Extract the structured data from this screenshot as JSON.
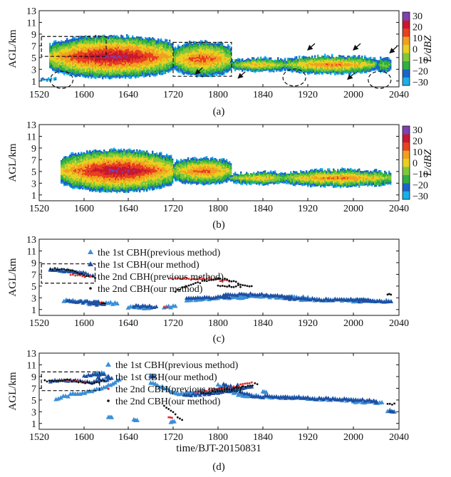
{
  "chart_data": [
    {
      "panel": "(a)",
      "type": "heatmap",
      "ylabel": "AGL/km",
      "colorbar_label": "L/dBZ",
      "x_ticks": [
        "1520",
        "1600",
        "1640",
        "1720",
        "1800",
        "1840",
        "1920",
        "2000",
        "2040"
      ],
      "y_ticks": [
        "1",
        "3",
        "5",
        "7",
        "9",
        "11",
        "13"
      ],
      "colorbar_ticks": [
        "30",
        "20",
        "10",
        "0",
        "−10",
        "−20",
        "−30"
      ],
      "ylim": [
        0,
        13
      ],
      "colorbar_range": [
        -35,
        35
      ],
      "colormap": [
        "#1ab0e8",
        "#1c64c8",
        "#30b040",
        "#7fc83a",
        "#e8d020",
        "#f0a020",
        "#e84020",
        "#c81830",
        "#8040b0"
      ],
      "echo_regions": [
        {
          "x0": 1522,
          "x1": 1534,
          "base": 1.0,
          "top": 1.3,
          "peak": -28
        },
        {
          "x0": 1530,
          "x1": 1720,
          "base": 1.5,
          "top": 8.6,
          "peak": 28
        },
        {
          "x0": 1720,
          "x1": 1812,
          "base": 1.8,
          "top": 7.6,
          "peak": 16
        },
        {
          "x0": 1812,
          "x1": 1900,
          "base": 2.6,
          "top": 4.8,
          "peak": 5
        },
        {
          "x0": 1900,
          "x1": 2020,
          "base": 2.2,
          "top": 5.2,
          "peak": 12
        },
        {
          "x0": 2020,
          "x1": 2033,
          "base": 2.5,
          "top": 4.8,
          "peak": -8
        }
      ],
      "annotations": {
        "boxes": [
          {
            "x0": 1522,
            "x1": 1580,
            "y0": 5.2,
            "y1": 8.6
          },
          {
            "x0": 1720,
            "x1": 1812,
            "y0": 1.8,
            "y1": 7.6
          }
        ],
        "circles": [
          {
            "x": 1540,
            "y": 1.2
          },
          {
            "x": 1868,
            "y": 1.6
          },
          {
            "x": 1983,
            "y": 1.2
          }
        ],
        "arrows": [
          {
            "x": 1880,
            "y": 6.3
          },
          {
            "x": 1960,
            "y": 6.3
          },
          {
            "x": 2032,
            "y": 5.8
          },
          {
            "x": 1740,
            "y": 2.2
          },
          {
            "x": 1778,
            "y": 1.5
          },
          {
            "x": 1955,
            "y": 1.3
          }
        ]
      }
    },
    {
      "panel": "(b)",
      "type": "heatmap",
      "ylabel": "AGL/km",
      "colorbar_label": "L/dBZ",
      "x_ticks": [
        "1520",
        "1600",
        "1640",
        "1720",
        "1800",
        "1840",
        "1920",
        "2000",
        "2040"
      ],
      "y_ticks": [
        "1",
        "3",
        "5",
        "7",
        "9",
        "11",
        "13"
      ],
      "colorbar_ticks": [
        "30",
        "20",
        "10",
        "0",
        "−10",
        "−20",
        "−30"
      ],
      "ylim": [
        0,
        13
      ],
      "echo_regions": [
        {
          "x0": 1540,
          "x1": 1720,
          "base": 1.5,
          "top": 8.6,
          "peak": 28
        },
        {
          "x0": 1720,
          "x1": 1812,
          "base": 2.8,
          "top": 7.2,
          "peak": 14
        },
        {
          "x0": 1812,
          "x1": 1900,
          "base": 2.8,
          "top": 4.8,
          "peak": 5
        },
        {
          "x0": 1900,
          "x1": 2033,
          "base": 2.4,
          "top": 5.2,
          "peak": 12
        }
      ]
    },
    {
      "panel": "(c)",
      "type": "scatter",
      "ylabel": "AGL/km",
      "x_ticks": [
        "1520",
        "1600",
        "1640",
        "1720",
        "1800",
        "1840",
        "1920",
        "2000",
        "2040"
      ],
      "y_ticks": [
        "1",
        "3",
        "5",
        "7",
        "9",
        "11",
        "13"
      ],
      "ylim": [
        0,
        13
      ],
      "legend": [
        "the 1st CBH(previous method)",
        "the 1st CBH(our method)",
        "the 2nd CBH(previous method)",
        "the 2nd CBH(our method)"
      ],
      "box": {
        "x0": 1522,
        "x1": 1570,
        "y0": 5.5,
        "y1": 8.8
      },
      "series": [
        {
          "name": "the 1st CBH(previous method)",
          "color": "#3a8fd8",
          "segments": [
            [
              [
                1530,
                7.8
              ],
              [
                1545,
                7.6
              ],
              [
                1558,
                7.2
              ]
            ],
            [
              [
                1542,
                2.6
              ],
              [
                1560,
                2.3
              ],
              [
                1590,
                2.0
              ],
              [
                1605,
                1.9
              ]
            ],
            [
              [
                1640,
                1.4
              ],
              [
                1660,
                1.3
              ]
            ],
            [
              [
                1712,
                1.3
              ],
              [
                1722,
                1.6
              ]
            ],
            [
              [
                1732,
                2.7
              ],
              [
                1760,
                3.0
              ],
              [
                1790,
                3.2
              ],
              [
                1820,
                3.4
              ],
              [
                1850,
                3.2
              ],
              [
                1880,
                3.0
              ],
              [
                1910,
                2.8
              ],
              [
                1940,
                2.7
              ],
              [
                1970,
                2.6
              ],
              [
                2000,
                2.5
              ],
              [
                2033,
                2.4
              ]
            ]
          ]
        },
        {
          "name": "the 1st CBH(our method)",
          "color": "#1f4fa0",
          "segments": [
            [
              [
                1530,
                7.9
              ],
              [
                1555,
                7.4
              ],
              [
                1568,
                6.8
              ]
            ],
            [
              [
                1545,
                2.4
              ],
              [
                1575,
                2.2
              ],
              [
                1605,
                2.0
              ],
              [
                1618,
                1.9
              ]
            ],
            [
              [
                1645,
                1.6
              ],
              [
                1665,
                1.5
              ]
            ],
            [
              [
                1732,
                2.9
              ],
              [
                1770,
                3.2
              ],
              [
                1805,
                3.5
              ],
              [
                1835,
                3.6
              ],
              [
                1865,
                3.2
              ],
              [
                1900,
                2.9
              ],
              [
                1940,
                2.7
              ],
              [
                1975,
                2.6
              ],
              [
                2005,
                2.5
              ],
              [
                2033,
                2.4
              ]
            ]
          ]
        },
        {
          "name": "the 2nd CBH(previous method)",
          "color": "#e03030",
          "segments": [
            [
              [
                1548,
                7.0
              ],
              [
                1565,
                6.6
              ]
            ],
            [
              [
                1615,
                2.1
              ]
            ],
            [
              [
                1712,
                1.4
              ]
            ],
            [
              [
                1718,
                6.2
              ],
              [
                1750,
                6.3
              ],
              [
                1770,
                5.8
              ]
            ]
          ]
        },
        {
          "name": "the 2nd CBH(our method)",
          "color": "#111111",
          "segments": [
            [
              [
                1530,
                8.0
              ],
              [
                1550,
                7.6
              ],
              [
                1570,
                6.4
              ]
            ],
            [
              [
                1616,
                2.1
              ]
            ],
            [
              [
                1722,
                4.2
              ],
              [
                1740,
                5.5
              ],
              [
                1760,
                6.4
              ],
              [
                1780,
                5.4
              ],
              [
                1800,
                5.0
              ],
              [
                1830,
                5.0
              ]
            ],
            [
              [
                2030,
                3.6
              ]
            ]
          ]
        }
      ]
    },
    {
      "panel": "(d)",
      "type": "scatter",
      "ylabel": "AGL/km",
      "xlabel": "time/BJT-20150831",
      "x_ticks": [
        "1520",
        "1600",
        "1640",
        "1720",
        "1800",
        "1840",
        "1920",
        "2000",
        "2040"
      ],
      "y_ticks": [
        "1",
        "3",
        "5",
        "7",
        "9",
        "11",
        "13"
      ],
      "ylim": [
        0,
        13
      ],
      "legend": [
        "the 1st CBH(previous method)",
        "the 1st CBH(our method)",
        "the 2nd CBH(previous method)",
        "the 2nd CBH(our method)"
      ],
      "box": {
        "x0": 1522,
        "x1": 1574,
        "y0": 6.6,
        "y1": 9.8
      },
      "series": [
        {
          "name": "the 1st CBH(previous method)",
          "color": "#3a8fd8",
          "segments": [
            [
              [
                1535,
                5.2
              ],
              [
                1550,
                6.0
              ],
              [
                1565,
                6.4
              ],
              [
                1580,
                7.2
              ],
              [
                1592,
                8.5
              ],
              [
                1608,
                9.4
              ],
              [
                1618,
                9.6
              ]
            ],
            [
              [
                1622,
                2.0
              ]
            ],
            [
              [
                1645,
                1.6
              ]
            ],
            [
              [
                1660,
                9.2
              ]
            ],
            [
              [
                1718,
                1.3
              ]
            ],
            [
              [
                1700,
                8.0
              ],
              [
                1725,
                6.0
              ],
              [
                1750,
                6.5
              ],
              [
                1775,
                7.0
              ],
              [
                1800,
                7.6
              ],
              [
                1820,
                5.8
              ],
              [
                1850,
                5.5
              ],
              [
                1880,
                5.4
              ],
              [
                1920,
                5.3
              ],
              [
                1960,
                5.0
              ],
              [
                2000,
                4.8
              ],
              [
                2025,
                4.6
              ]
            ],
            [
              [
                1840,
                6.4
              ]
            ],
            [
              [
                2030,
                3.2
              ],
              [
                2036,
                3.0
              ]
            ]
          ]
        },
        {
          "name": "the 1st CBH(our method)",
          "color": "#1f4fa0",
          "segments": [
            [
              [
                1530,
                8.2
              ],
              [
                1548,
                8.4
              ],
              [
                1565,
                8.0
              ],
              [
                1585,
                8.6
              ],
              [
                1600,
                9.2
              ],
              [
                1618,
                9.4
              ]
            ],
            [
              [
                1660,
                9.0
              ]
            ],
            [
              [
                1730,
                5.8
              ],
              [
                1760,
                6.2
              ],
              [
                1790,
                7.2
              ],
              [
                1805,
                7.8
              ],
              [
                1830,
                5.7
              ],
              [
                1860,
                5.5
              ],
              [
                1900,
                5.4
              ],
              [
                1940,
                5.2
              ],
              [
                1980,
                4.9
              ],
              [
                2020,
                4.6
              ]
            ],
            [
              [
                2032,
                3.0
              ]
            ]
          ]
        },
        {
          "name": "the 2nd CBH(previous method)",
          "color": "#e03030",
          "segments": [
            [
              [
                1545,
                8.3
              ],
              [
                1560,
                8.1
              ]
            ],
            [
              [
                1716,
                2.0
              ]
            ],
            [
              [
                1740,
                6.4
              ],
              [
                1770,
                7.0
              ],
              [
                1790,
                8.0
              ]
            ]
          ]
        },
        {
          "name": "the 2nd CBH(our method)",
          "color": "#111111",
          "segments": [
            [
              [
                1525,
                8.2
              ],
              [
                1545,
                8.4
              ],
              [
                1565,
                7.8
              ],
              [
                1578,
                8.3
              ]
            ],
            [
              [
                1712,
                4.0
              ],
              [
                1722,
                2.5
              ],
              [
                1728,
                1.6
              ]
            ],
            [
              [
                1745,
                6.0
              ],
              [
                1770,
                6.8
              ],
              [
                1795,
                7.8
              ],
              [
                1808,
                7.0
              ]
            ],
            [
              [
                2030,
                4.2
              ],
              [
                2036,
                4.4
              ]
            ]
          ]
        }
      ]
    }
  ],
  "captions": [
    "(a)",
    "(b)",
    "(c)",
    "(d)"
  ]
}
